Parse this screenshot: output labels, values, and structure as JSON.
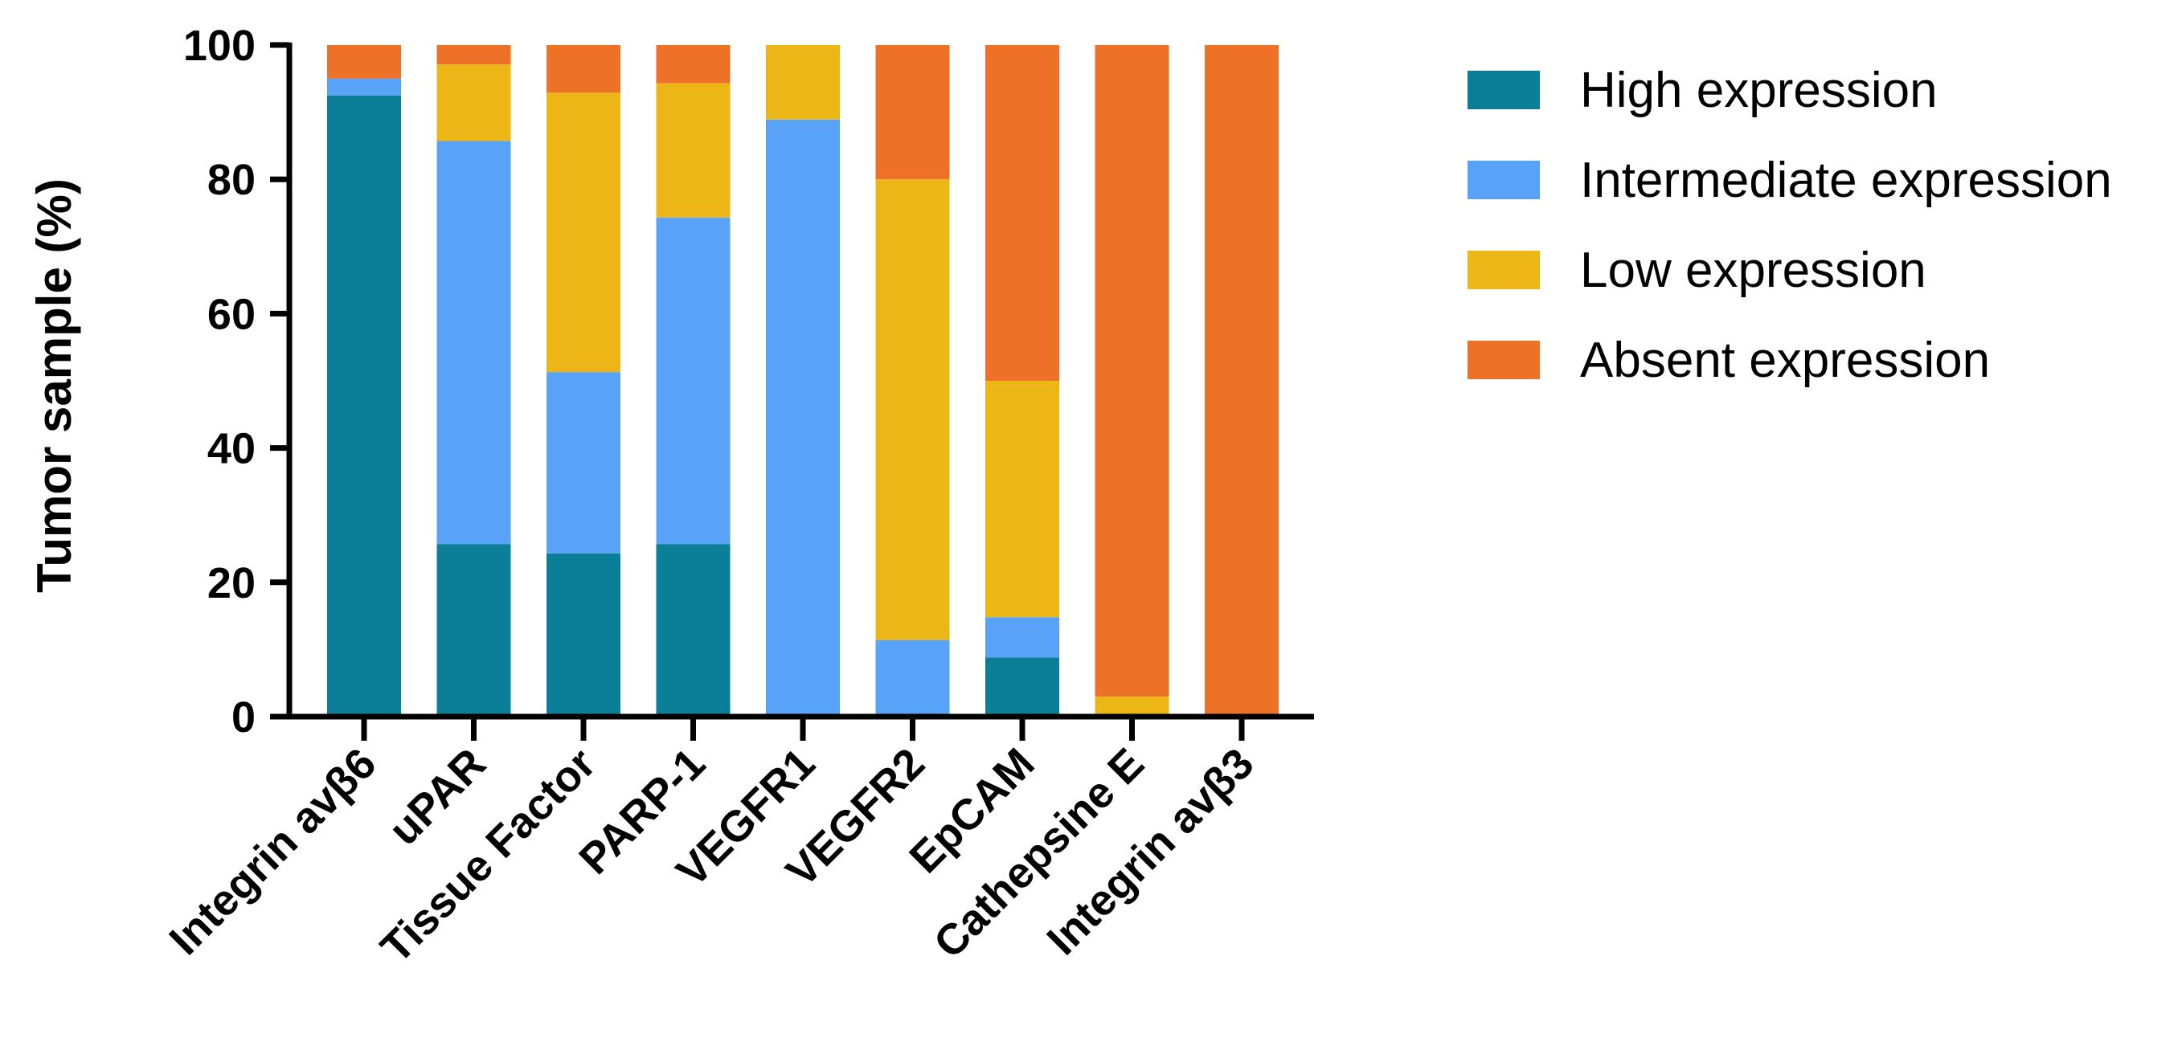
{
  "chart_data": {
    "type": "bar",
    "stacked": true,
    "title": "",
    "xlabel": "",
    "ylabel": "Tumor sample (%)",
    "ylim": [
      0,
      100
    ],
    "yticks": [
      "0",
      "20",
      "40",
      "60",
      "80",
      "100"
    ],
    "categories": [
      "Integrin avβ6",
      "uPAR",
      "Tissue Factor",
      "PARP-1",
      "VEGFR1",
      "VEGFR2",
      "EpCAM",
      "Cathepsine E",
      "Integrin avβ3"
    ],
    "series": [
      {
        "name": "High expression",
        "color": "#0A7F97",
        "values": [
          92.5,
          25.7,
          24.3,
          25.7,
          0.0,
          0.0,
          8.8,
          0.0,
          0.0
        ]
      },
      {
        "name": "Intermediate expression",
        "color": "#58A3F7",
        "values": [
          2.5,
          60.0,
          27.0,
          48.6,
          88.9,
          11.4,
          6.0,
          0.0,
          0.0
        ]
      },
      {
        "name": "Low expression",
        "color": "#ECB716",
        "values": [
          0.0,
          11.4,
          41.6,
          20.0,
          11.1,
          68.6,
          35.2,
          3.0,
          0.0
        ]
      },
      {
        "name": "Absent expression",
        "color": "#EE7128",
        "values": [
          5.0,
          2.9,
          7.1,
          5.7,
          0.0,
          20.0,
          50.0,
          97.0,
          100.0
        ]
      }
    ],
    "legend_position": "right"
  }
}
